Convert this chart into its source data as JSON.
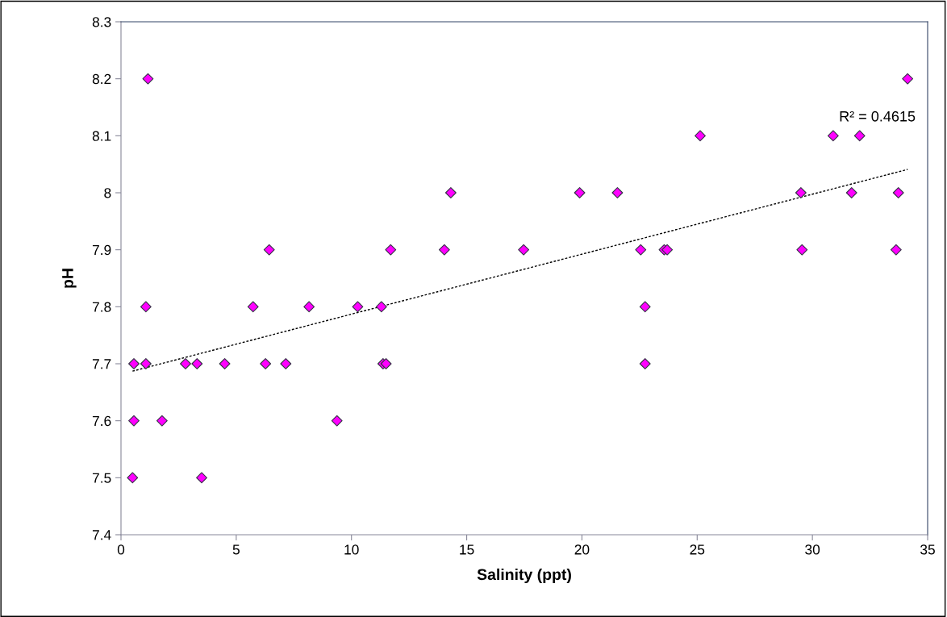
{
  "chart_data": {
    "type": "scatter",
    "xlabel": "Salinity (ppt)",
    "ylabel": "pH",
    "xlim": [
      0,
      35
    ],
    "xticks": [
      0,
      5,
      10,
      15,
      20,
      25,
      30,
      35
    ],
    "ylim": [
      7.4,
      8.3
    ],
    "yticks": [
      {
        "value": 7.4,
        "label": "7.4"
      },
      {
        "value": 7.5,
        "label": "7.5"
      },
      {
        "value": 7.6,
        "label": "7.6"
      },
      {
        "value": 7.7,
        "label": "7.7"
      },
      {
        "value": 7.8,
        "label": "7.8"
      },
      {
        "value": 7.9,
        "label": "7.9"
      },
      {
        "value": 8.0,
        "label": "8"
      },
      {
        "value": 8.1,
        "label": "8.1"
      },
      {
        "value": 8.2,
        "label": "8.2"
      },
      {
        "value": 8.3,
        "label": "8.3"
      }
    ],
    "grid": false,
    "legend": false,
    "marker": "diamond",
    "series": [
      {
        "color": "#ff00ff",
        "x": [
          0.5,
          0.56,
          0.56,
          1.08,
          1.08,
          1.17,
          1.78,
          2.8,
          3.3,
          3.5,
          4.5,
          5.73,
          6.27,
          6.43,
          7.15,
          8.16,
          9.37,
          10.27,
          11.3,
          11.37,
          11.5,
          11.7,
          14.03,
          14.31,
          17.47,
          19.9,
          21.54,
          22.55,
          22.74,
          22.74,
          23.57,
          23.7,
          25.13,
          29.5,
          29.55,
          30.9,
          31.7,
          32.05,
          33.63,
          33.73,
          34.13
        ],
        "values": [
          7.5,
          7.6,
          7.7,
          7.7,
          7.8,
          8.2,
          7.6,
          7.7,
          7.7,
          7.5,
          7.7,
          7.8,
          7.7,
          7.9,
          7.7,
          7.8,
          7.6,
          7.8,
          7.8,
          7.7,
          7.7,
          7.9,
          7.9,
          8.0,
          7.9,
          8.0,
          8.0,
          7.9,
          7.8,
          7.7,
          7.9,
          7.9,
          8.1,
          8.0,
          7.9,
          8.1,
          8.0,
          8.1,
          7.9,
          8.0,
          8.2
        ]
      },
      {
        "type": "line",
        "color": "#000000",
        "line_style": "dotted",
        "marker": "none",
        "x": [
          0.5,
          34.13
        ],
        "values": [
          7.687,
          8.041
        ]
      }
    ],
    "annotations": [
      "R² = 0.4615"
    ]
  }
}
